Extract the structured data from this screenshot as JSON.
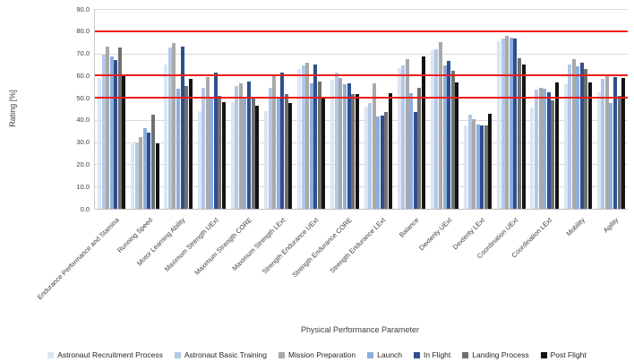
{
  "chart_data": {
    "type": "bar",
    "title": "",
    "xlabel": "Physical Performance Parameter",
    "ylabel": "Rating [%]",
    "ylim": [
      0,
      90
    ],
    "ytick_step": 10,
    "ytick_labels": [
      "0.0",
      "10.0",
      "20.0",
      "30.0",
      "40.0",
      "50.0",
      "60.0",
      "70.0",
      "80.0",
      "90.0"
    ],
    "grid": true,
    "gridline_color": "#d9d9d9",
    "legend_position": "bottom",
    "reference_lines": [
      {
        "y": 50,
        "color": "#ee1c1c"
      },
      {
        "y": 60,
        "color": "#ee1c1c"
      },
      {
        "y": 80,
        "color": "#ee1c1c"
      }
    ],
    "categories": [
      "Endurance Performance and Stamina",
      "Running Speed",
      "Motor Learning Ability",
      "Maximum Strength UExt",
      "Maximum Strength CORE",
      "Maximum Strength LExt",
      "Strength Endurance UExt",
      "Strength Endurance CORE",
      "Strength Endurance LExt",
      "Balance",
      "Dexterity UExt",
      "Dexterity LExt",
      "Coordination UExt",
      "Coordination LExt",
      "Mobility",
      "Agility"
    ],
    "series": [
      {
        "name": "Astronaut Recruitment Process",
        "color": "#dce6f2",
        "values": [
          59,
          29,
          65,
          44,
          48,
          44,
          63,
          58,
          46,
          63.5,
          71.5,
          37.5,
          75.5,
          45.5,
          56,
          52.5
        ]
      },
      {
        "name": "Astronaut Basic Training",
        "color": "#b2c8e6",
        "values": [
          69.5,
          30,
          72.5,
          54.5,
          55.5,
          54.5,
          64.5,
          61.5,
          47.5,
          64.5,
          72,
          42.5,
          76.5,
          53.5,
          65,
          58.5
        ]
      },
      {
        "name": "Mission Preparation",
        "color": "#a9a9a9",
        "values": [
          73,
          32.5,
          74.5,
          59.5,
          56.5,
          60,
          66,
          59,
          56.5,
          67.5,
          75,
          40.5,
          78,
          54.5,
          67.5,
          60
        ]
      },
      {
        "name": "Launch",
        "color": "#8eaedb",
        "values": [
          68.5,
          36.5,
          54,
          49.5,
          49.5,
          49.5,
          56.5,
          56,
          41.5,
          52,
          64.5,
          38,
          77,
          54,
          64,
          47.5
        ]
      },
      {
        "name": "In Flight",
        "color": "#2e4f8e",
        "values": [
          67,
          34.5,
          73,
          61.5,
          57.5,
          61.5,
          65,
          56.5,
          42,
          43.5,
          66.5,
          37.5,
          76.5,
          52.5,
          66,
          59.5
        ]
      },
      {
        "name": "Landing Process",
        "color": "#707070",
        "values": [
          72.5,
          42.5,
          55.5,
          51,
          50,
          51.5,
          57.5,
          51.5,
          43.5,
          54.5,
          62,
          37.5,
          68,
          49,
          63,
          51
        ]
      },
      {
        "name": "Post Flight",
        "color": "#141414",
        "values": [
          60.5,
          29.5,
          58.5,
          48,
          46.5,
          47.5,
          50.5,
          51.5,
          52,
          68.5,
          57,
          43,
          65,
          57,
          57,
          59
        ]
      }
    ]
  }
}
